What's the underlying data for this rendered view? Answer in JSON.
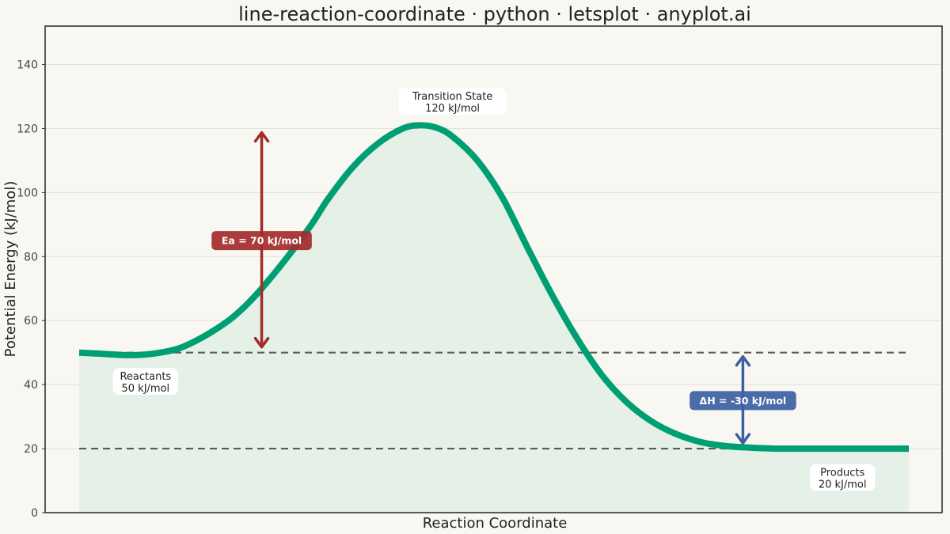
{
  "chart_data": {
    "type": "line",
    "title": "line-reaction-coordinate · python · letsplot · anyplot.ai",
    "xlabel": "Reaction Coordinate",
    "ylabel": "Potential Energy (kJ/mol)",
    "ylim": [
      0,
      152
    ],
    "y_ticks": [
      0,
      20,
      40,
      60,
      80,
      100,
      120,
      140
    ],
    "x_ticks_shown": false,
    "xlim": [
      0,
      1
    ],
    "grid": "horizontal",
    "legend": "none",
    "series": [
      {
        "x": [
          0.0,
          0.03,
          0.06,
          0.09,
          0.12,
          0.15,
          0.18,
          0.2,
          0.22,
          0.25,
          0.28,
          0.3,
          0.33,
          0.36,
          0.39,
          0.41,
          0.43,
          0.45,
          0.48,
          0.51,
          0.54,
          0.57,
          0.6,
          0.63,
          0.66,
          0.69,
          0.72,
          0.75,
          0.78,
          0.81,
          0.84,
          0.87,
          0.9,
          0.93,
          0.96,
          1.0
        ],
        "values": [
          50.0,
          49.6,
          49.2,
          49.7,
          51.3,
          55.0,
          60.0,
          64.5,
          70.0,
          79.5,
          90.0,
          98.0,
          108.0,
          115.3,
          120.0,
          121.0,
          120.3,
          117.5,
          110.0,
          98.5,
          83.0,
          68.0,
          54.5,
          43.0,
          34.5,
          28.5,
          24.5,
          22.0,
          20.8,
          20.3,
          20.0,
          20.0,
          20.0,
          20.0,
          20.0,
          20.0
        ]
      }
    ],
    "reference_lines": [
      {
        "y": 50,
        "style": "dashed"
      },
      {
        "y": 20,
        "style": "dashed"
      }
    ],
    "energy_arrows": [
      {
        "x": 0.22,
        "y_from": 50,
        "y_to": 120,
        "label": "Ea = 70 kJ/mol",
        "color": "#a32b2b"
      },
      {
        "x": 0.8,
        "y_from": 20,
        "y_to": 50,
        "label": "ΔH = -30 kJ/mol",
        "color": "#3d5fa3"
      }
    ],
    "annotations": [
      {
        "name": "transition-state",
        "x": 0.45,
        "y": 128.5,
        "line1": "Transition State",
        "line2": "120 kJ/mol"
      },
      {
        "name": "reactants",
        "x": 0.08,
        "y": 41,
        "line1": "Reactants",
        "line2": "50 kJ/mol"
      },
      {
        "name": "products",
        "x": 0.92,
        "y": 11,
        "line1": "Products",
        "line2": "20 kJ/mol"
      }
    ],
    "colors": {
      "curve": "#009e73",
      "fill": "#e5f0e7",
      "reference": "#5a5a5a",
      "background": "#f9f7f1",
      "grid": "#e2e0da",
      "border": "#333333"
    }
  }
}
